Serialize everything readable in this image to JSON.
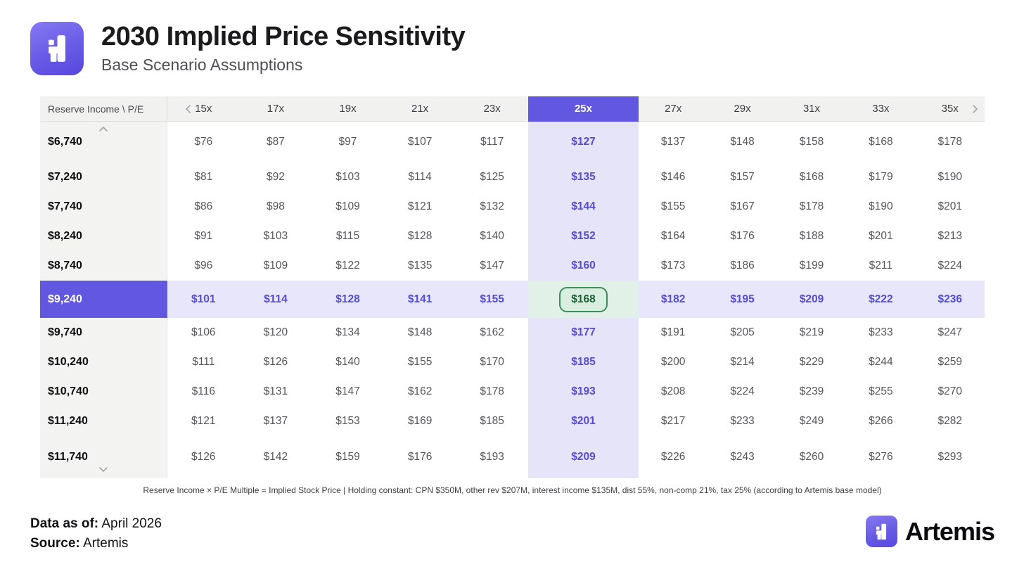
{
  "header": {
    "title": "2030 Implied Price Sensitivity",
    "subtitle": "Base Scenario Assumptions"
  },
  "table_ui": {
    "corner_label": "Reserve Income \\ P/E"
  },
  "chart_data": {
    "type": "table",
    "title": "2030 Implied Price Sensitivity",
    "subtitle": "Base Scenario Assumptions",
    "row_axis": "Reserve Income",
    "col_axis": "P/E",
    "columns": [
      "15x",
      "17x",
      "19x",
      "21x",
      "23x",
      "25x",
      "27x",
      "29x",
      "31x",
      "33x",
      "35x"
    ],
    "highlighted_column": "25x",
    "highlighted_row": "$9,240",
    "highlighted_cell_value": "$168",
    "rows": [
      {
        "label": "$6,740",
        "values": [
          "$76",
          "$87",
          "$97",
          "$107",
          "$117",
          "$127",
          "$137",
          "$148",
          "$158",
          "$168",
          "$178"
        ]
      },
      {
        "label": "$7,240",
        "values": [
          "$81",
          "$92",
          "$103",
          "$114",
          "$125",
          "$135",
          "$146",
          "$157",
          "$168",
          "$179",
          "$190"
        ]
      },
      {
        "label": "$7,740",
        "values": [
          "$86",
          "$98",
          "$109",
          "$121",
          "$132",
          "$144",
          "$155",
          "$167",
          "$178",
          "$190",
          "$201"
        ]
      },
      {
        "label": "$8,240",
        "values": [
          "$91",
          "$103",
          "$115",
          "$128",
          "$140",
          "$152",
          "$164",
          "$176",
          "$188",
          "$201",
          "$213"
        ]
      },
      {
        "label": "$8,740",
        "values": [
          "$96",
          "$109",
          "$122",
          "$135",
          "$147",
          "$160",
          "$173",
          "$186",
          "$199",
          "$211",
          "$224"
        ]
      },
      {
        "label": "$9,240",
        "values": [
          "$101",
          "$114",
          "$128",
          "$141",
          "$155",
          "$168",
          "$182",
          "$195",
          "$209",
          "$222",
          "$236"
        ]
      },
      {
        "label": "$9,740",
        "values": [
          "$106",
          "$120",
          "$134",
          "$148",
          "$162",
          "$177",
          "$191",
          "$205",
          "$219",
          "$233",
          "$247"
        ]
      },
      {
        "label": "$10,240",
        "values": [
          "$111",
          "$126",
          "$140",
          "$155",
          "$170",
          "$185",
          "$200",
          "$214",
          "$229",
          "$244",
          "$259"
        ]
      },
      {
        "label": "$10,740",
        "values": [
          "$116",
          "$131",
          "$147",
          "$162",
          "$178",
          "$193",
          "$208",
          "$224",
          "$239",
          "$255",
          "$270"
        ]
      },
      {
        "label": "$11,240",
        "values": [
          "$121",
          "$137",
          "$153",
          "$169",
          "$185",
          "$201",
          "$217",
          "$233",
          "$249",
          "$266",
          "$282"
        ]
      },
      {
        "label": "$11,740",
        "values": [
          "$126",
          "$142",
          "$159",
          "$176",
          "$193",
          "$209",
          "$226",
          "$243",
          "$260",
          "$276",
          "$293"
        ]
      }
    ]
  },
  "footnote": "Reserve Income × P/E Multiple = Implied Stock Price | Holding constant: CPN $350M, other rev $207M, interest income $135M, dist 55%, non-comp 21%, tax 25% (according to Artemis base model)",
  "footer": {
    "data_as_of_label": "Data as of:",
    "data_as_of_value": " April 2026",
    "source_label": "Source:",
    "source_value": " Artemis",
    "brand_name": "Artemis"
  },
  "colors": {
    "accent_purple": "#6157E0",
    "light_purple_column": "#E6E4F9",
    "light_purple_row": "#E8E6FA",
    "green_cell_bg": "#E2F1E7",
    "green_pill_bg": "#D9EEE0",
    "green_border": "#3E8E59",
    "green_text": "#1C5F37",
    "header_bg": "#F1F1EF",
    "label_column_bg": "#F3F3F1"
  }
}
